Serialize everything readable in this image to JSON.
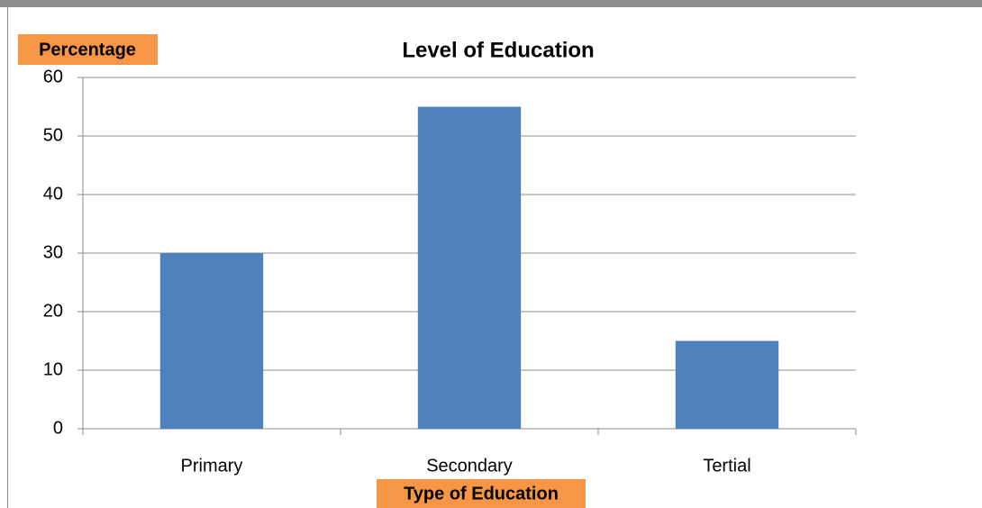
{
  "chart_data": {
    "type": "bar",
    "title": "Level of Education",
    "x_label": "Type of Education",
    "y_label": "Percentage",
    "categories": [
      "Primary",
      "Secondary",
      "Tertial"
    ],
    "values": [
      30,
      55,
      15
    ],
    "color": "#4f81bd",
    "ylim": [
      0,
      60
    ],
    "yticks": [
      0,
      10,
      20,
      30,
      40,
      50,
      60
    ],
    "grid": true
  }
}
